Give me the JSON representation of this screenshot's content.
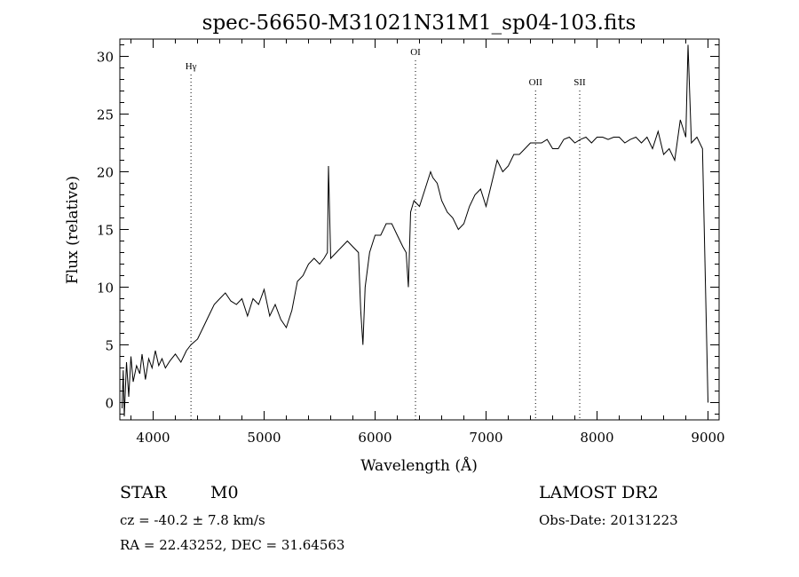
{
  "chart_data": {
    "type": "line",
    "title": "spec-56650-M31021N31M1_sp04-103.fits",
    "xlabel": "Wavelength (Å)",
    "ylabel": "Flux (relative)",
    "xlim": [
      3700,
      9100
    ],
    "ylim": [
      -1.5,
      31.5
    ],
    "x_ticks": [
      4000,
      5000,
      6000,
      7000,
      8000,
      9000
    ],
    "y_ticks": [
      0,
      5,
      10,
      15,
      20,
      25,
      30
    ],
    "x_tick_labels": [
      "4000",
      "5000",
      "6000",
      "7000",
      "8000",
      "9000"
    ],
    "y_tick_labels": [
      "0",
      "5",
      "10",
      "15",
      "20",
      "25",
      "30"
    ],
    "grid": false,
    "series": [
      {
        "color": "#000000",
        "x": [
          3720,
          3730,
          3740,
          3760,
          3780,
          3800,
          3820,
          3850,
          3880,
          3900,
          3930,
          3960,
          3990,
          4020,
          4050,
          4080,
          4110,
          4150,
          4200,
          4250,
          4300,
          4340,
          4400,
          4450,
          4500,
          4550,
          4600,
          4650,
          4700,
          4750,
          4800,
          4850,
          4900,
          4950,
          5000,
          5050,
          5100,
          5150,
          5200,
          5250,
          5300,
          5350,
          5400,
          5450,
          5500,
          5540,
          5570,
          5580,
          5600,
          5650,
          5700,
          5750,
          5800,
          5850,
          5870,
          5890,
          5910,
          5950,
          6000,
          6050,
          6100,
          6150,
          6200,
          6250,
          6280,
          6300,
          6320,
          6350,
          6400,
          6450,
          6500,
          6520,
          6560,
          6600,
          6650,
          6700,
          6750,
          6800,
          6850,
          6900,
          6950,
          7000,
          7050,
          7100,
          7150,
          7200,
          7250,
          7300,
          7350,
          7400,
          7450,
          7500,
          7550,
          7600,
          7650,
          7700,
          7750,
          7800,
          7850,
          7900,
          7950,
          8000,
          8050,
          8100,
          8150,
          8200,
          8250,
          8300,
          8350,
          8400,
          8450,
          8500,
          8550,
          8600,
          8650,
          8700,
          8750,
          8800,
          8820,
          8850,
          8900,
          8950,
          9000
        ],
        "y": [
          -0.5,
          2.8,
          -1.2,
          3.5,
          0.5,
          4.0,
          1.8,
          3.2,
          2.5,
          4.2,
          2.0,
          3.8,
          3.0,
          4.5,
          3.2,
          3.8,
          3.0,
          3.6,
          4.2,
          3.5,
          4.5,
          5.0,
          5.5,
          6.5,
          7.5,
          8.5,
          9.0,
          9.5,
          8.8,
          8.5,
          9.0,
          7.5,
          9.0,
          8.5,
          9.8,
          7.5,
          8.5,
          7.2,
          6.5,
          8.0,
          10.5,
          11.0,
          12.0,
          12.5,
          12.0,
          12.5,
          13.0,
          20.5,
          12.5,
          13.0,
          13.5,
          14.0,
          13.5,
          13.0,
          8.0,
          5.0,
          10.0,
          13.0,
          14.5,
          14.5,
          15.5,
          15.5,
          14.5,
          13.5,
          13.0,
          10.0,
          16.5,
          17.5,
          17.0,
          18.5,
          20.0,
          19.5,
          19.0,
          17.5,
          16.5,
          16.0,
          15.0,
          15.5,
          17.0,
          18.0,
          18.5,
          17.0,
          19.0,
          21.0,
          20.0,
          20.5,
          21.5,
          21.5,
          22.0,
          22.5,
          22.5,
          22.5,
          22.8,
          22.0,
          22.0,
          22.8,
          23.0,
          22.5,
          22.8,
          23.0,
          22.5,
          23.0,
          23.0,
          22.8,
          23.0,
          23.0,
          22.5,
          22.8,
          23.0,
          22.5,
          23.0,
          22.0,
          23.5,
          21.5,
          22.0,
          21.0,
          24.5,
          23.0,
          31.0,
          22.5,
          23.0,
          22.0,
          0.0
        ]
      }
    ],
    "lines": [
      {
        "label": "Hγ",
        "x": 4341
      },
      {
        "label": "OI",
        "x": 6364
      },
      {
        "label": "OII",
        "x": 7446
      },
      {
        "label": "SII",
        "x": 7844
      }
    ]
  },
  "footer": {
    "class_label": "STAR",
    "subclass": "M0",
    "survey": "LAMOST DR2",
    "cz": "cz = -40.2 ± 7.8 km/s",
    "obs_date": "Obs-Date: 20131223",
    "coords": "RA =  22.43252, DEC =  31.64563"
  }
}
